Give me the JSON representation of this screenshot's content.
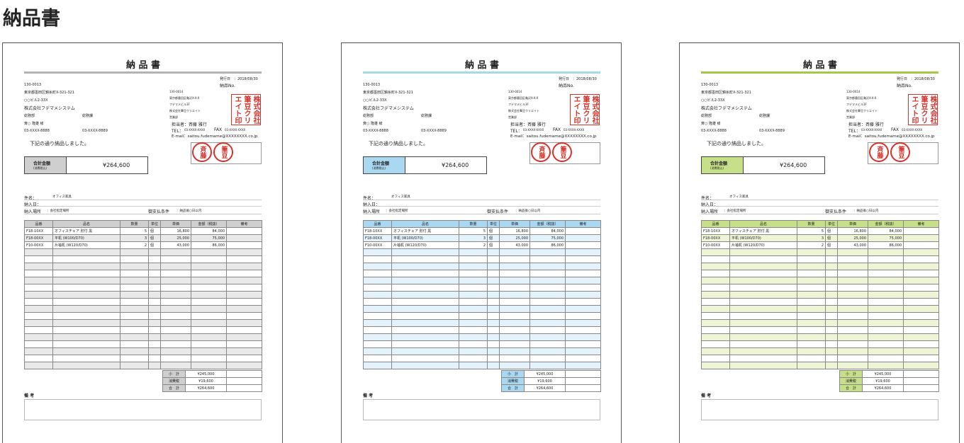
{
  "page_title": "納品書",
  "document": {
    "title": "納 品 書",
    "issue_date": "発行日　：2018/08/30",
    "delivery_no": "納品No.",
    "recipient": {
      "postal": "130-0013",
      "address": "東京都墨田区錦糸町X-321-321",
      "building": "○○ビル2-33X",
      "company": "株式会社フデマメシステム",
      "department": "総務部",
      "section": "総務課",
      "name": "斉○ 隆雄 様",
      "tel": "03-XXXX-8888",
      "fax": "03-XXXX-8889"
    },
    "sender": {
      "postal": "130-0014",
      "address": "東京都墨田区亀沢X-X-X",
      "building": "フデマメビル3F",
      "company": "株式会社筆豆クリエイト",
      "department": "営業部",
      "contact": "担当者：斉藤 雅行",
      "tel_label": "TEL：",
      "tel": "03-XXXX-XXXX",
      "fax_label": "FAX",
      "fax": "03-XXXX-XXXX",
      "email": "E-mail：saitou.fudemame@XXXXXXXX.co.jp"
    },
    "company_seal": "株式会社筆豆クリエイト印",
    "personal_seals": [
      "斉藤",
      "筆豆"
    ],
    "message": "下記の通り納品しました。",
    "total_label": "合計金額",
    "total_note": "(消費税込)",
    "total": "¥264,600",
    "subject_label": "件名：",
    "subject": "オフィス家具",
    "delivery_date_label": "納入日：",
    "place_label": "納入場所",
    "place": "：会社指定場所",
    "payment_label": "御支払条件",
    "payment": "：納品後○日以内",
    "table": {
      "headers": [
        "品番",
        "品名",
        "数量",
        "単位",
        "単価",
        "金額（税抜）",
        "備考"
      ],
      "rows": [
        [
          "F18-10XX",
          "オフィスチェア 肘付 黒",
          "5",
          "個",
          "16,800",
          "84,000"
        ],
        [
          "F18-00XX",
          "平机 (W100/D70)",
          "3",
          "個",
          "25,000",
          "75,000"
        ],
        [
          "F10-00XX",
          "片袖机 (W120/D70)",
          "2",
          "個",
          "43,000",
          "86,000"
        ]
      ]
    },
    "summary": [
      [
        "小　計",
        "¥245,000"
      ],
      [
        "消費税",
        "¥19,600"
      ],
      [
        "合　計",
        "¥264,600"
      ]
    ],
    "remarks_label": "備 考"
  }
}
